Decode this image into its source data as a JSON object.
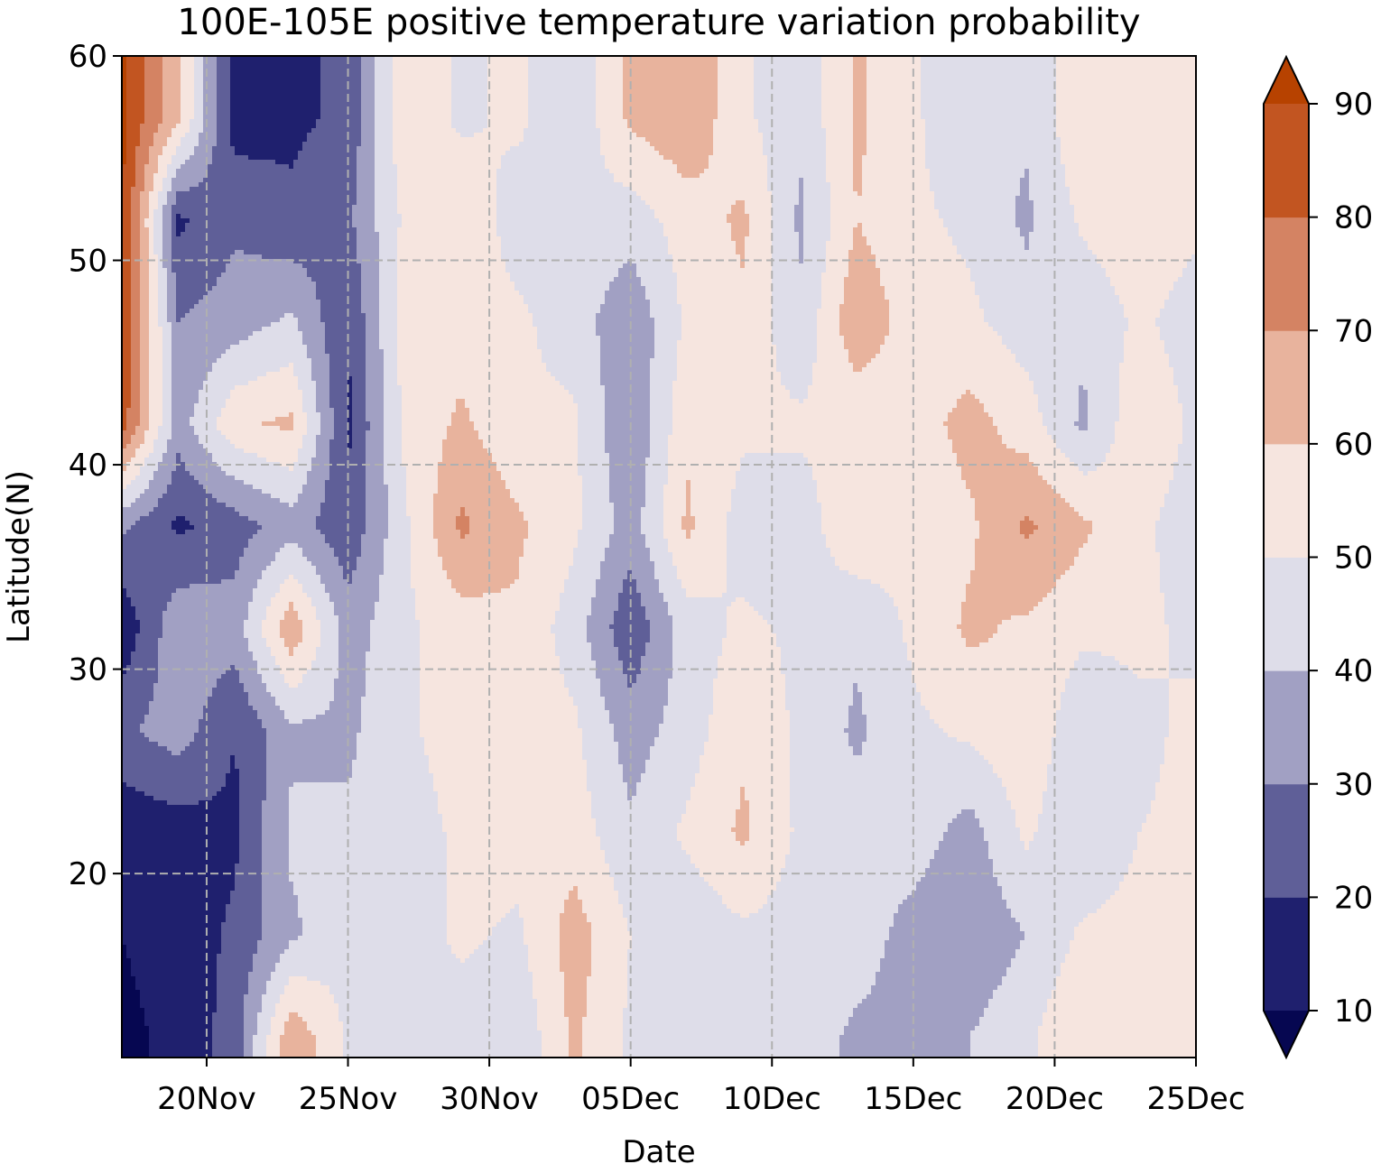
{
  "chart_data": {
    "type": "heatmap",
    "title": "100E-105E positive temperature variation probability",
    "xlabel": "Date",
    "ylabel": "Latitude(N)",
    "x_range": [
      "2023-11-17",
      "2023-12-25"
    ],
    "y_range": [
      11,
      60
    ],
    "x_ticks": [
      {
        "date": "2023-11-20",
        "label": "20Nov"
      },
      {
        "date": "2023-11-25",
        "label": "25Nov"
      },
      {
        "date": "2023-11-30",
        "label": "30Nov"
      },
      {
        "date": "2023-12-05",
        "label": "05Dec"
      },
      {
        "date": "2023-12-10",
        "label": "10Dec"
      },
      {
        "date": "2023-12-15",
        "label": "15Dec"
      },
      {
        "date": "2023-12-20",
        "label": "20Dec"
      },
      {
        "date": "2023-12-25",
        "label": "25Dec"
      }
    ],
    "y_ticks": [
      20,
      30,
      40,
      50,
      60
    ],
    "grid": true,
    "colorbar": {
      "levels": [
        10,
        20,
        30,
        40,
        50,
        60,
        70,
        80,
        90
      ],
      "labels": [
        "10",
        "20",
        "30",
        "40",
        "50",
        "60",
        "70",
        "80",
        "90"
      ],
      "colors": [
        "#1f206e",
        "#5f5f98",
        "#a1a0c3",
        "#dedde9",
        "#f6e5df",
        "#e8b39d",
        "#d48363",
        "#c25521"
      ],
      "under_color": "#060751",
      "over_color": "#b74200",
      "extend": "both"
    },
    "latitudes": [
      12,
      17,
      22,
      27,
      32,
      37,
      42,
      47,
      52,
      57
    ],
    "dates": [
      "2023-11-17",
      "2023-11-19",
      "2023-11-21",
      "2023-11-23",
      "2023-11-25",
      "2023-11-27",
      "2023-11-29",
      "2023-12-01",
      "2023-12-03",
      "2023-12-05",
      "2023-12-07",
      "2023-12-09",
      "2023-12-11",
      "2023-12-13",
      "2023-12-15",
      "2023-12-17",
      "2023-12-19",
      "2023-12-21",
      "2023-12-23",
      "2023-12-25"
    ],
    "values": [
      [
        8,
        12,
        25,
        68,
        48,
        42,
        45,
        42,
        62,
        48,
        45,
        42,
        45,
        38,
        36,
        40,
        48,
        60,
        52,
        52
      ],
      [
        10,
        14,
        22,
        38,
        48,
        45,
        52,
        48,
        65,
        50,
        42,
        48,
        45,
        45,
        36,
        32,
        40,
        52,
        54,
        55
      ],
      [
        12,
        15,
        18,
        42,
        42,
        45,
        52,
        55,
        55,
        42,
        52,
        62,
        48,
        45,
        45,
        36,
        52,
        40,
        50,
        52
      ],
      [
        28,
        35,
        20,
        38,
        38,
        48,
        55,
        55,
        52,
        35,
        45,
        58,
        48,
        38,
        48,
        52,
        58,
        42,
        48,
        52
      ],
      [
        12,
        38,
        35,
        68,
        35,
        48,
        55,
        58,
        45,
        22,
        45,
        52,
        48,
        42,
        52,
        62,
        58,
        52,
        52,
        48
      ],
      [
        32,
        18,
        25,
        35,
        22,
        48,
        72,
        62,
        52,
        35,
        62,
        45,
        45,
        58,
        52,
        58,
        72,
        62,
        52,
        45
      ],
      [
        85,
        35,
        58,
        62,
        18,
        52,
        62,
        52,
        52,
        30,
        58,
        52,
        52,
        52,
        55,
        64,
        55,
        38,
        58,
        48
      ],
      [
        92,
        30,
        35,
        42,
        20,
        55,
        55,
        52,
        45,
        32,
        52,
        58,
        42,
        68,
        55,
        52,
        45,
        42,
        52,
        45
      ],
      [
        92,
        18,
        28,
        22,
        28,
        52,
        58,
        45,
        48,
        45,
        55,
        62,
        38,
        60,
        52,
        48,
        38,
        52,
        58,
        52
      ],
      [
        92,
        62,
        15,
        18,
        22,
        58,
        48,
        52,
        42,
        62,
        68,
        52,
        42,
        62,
        52,
        40,
        42,
        58,
        52,
        58
      ]
    ]
  }
}
